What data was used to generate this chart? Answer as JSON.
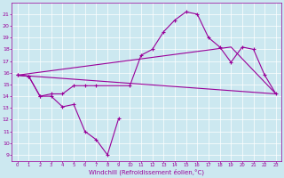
{
  "xlabel": "Windchill (Refroidissement éolien,°C)",
  "bg_color": "#cce8f0",
  "line_color": "#990099",
  "xlim": [
    -0.5,
    23.5
  ],
  "ylim": [
    8.5,
    22
  ],
  "yticks": [
    9,
    10,
    11,
    12,
    13,
    14,
    15,
    16,
    17,
    18,
    19,
    20,
    21
  ],
  "xticks": [
    0,
    1,
    2,
    3,
    4,
    5,
    6,
    7,
    8,
    9,
    10,
    11,
    12,
    13,
    14,
    15,
    16,
    17,
    18,
    19,
    20,
    21,
    22,
    23
  ],
  "series1_x": [
    0,
    1,
    2,
    3,
    4,
    5,
    6,
    7,
    8,
    9
  ],
  "series1_y": [
    15.8,
    15.7,
    14.0,
    14.0,
    13.1,
    13.3,
    11.0,
    10.3,
    9.0,
    12.1
  ],
  "series2_x": [
    0,
    1,
    2,
    3,
    4,
    5,
    6,
    7,
    10,
    11,
    12,
    13,
    14,
    15,
    16,
    17,
    18,
    19,
    20,
    21,
    22,
    23
  ],
  "series2_y": [
    15.8,
    15.7,
    14.0,
    14.2,
    14.2,
    14.9,
    14.9,
    14.9,
    14.9,
    17.5,
    18.0,
    19.5,
    20.5,
    21.2,
    21.0,
    19.0,
    18.2,
    16.9,
    18.2,
    18.0,
    15.8,
    14.2
  ],
  "series3_x": [
    0,
    23
  ],
  "series3_y": [
    15.8,
    14.2
  ],
  "series4_x": [
    0,
    19,
    23
  ],
  "series4_y": [
    15.8,
    18.2,
    14.2
  ]
}
